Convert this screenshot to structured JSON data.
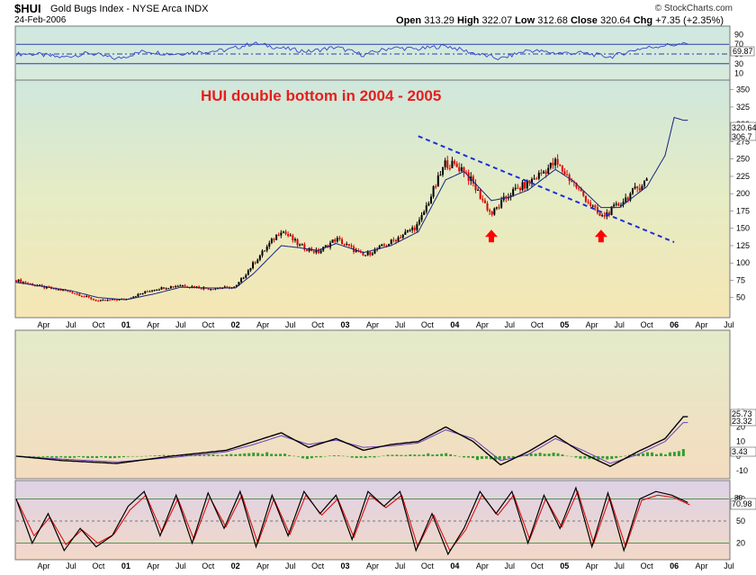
{
  "header": {
    "symbol": "$HUI",
    "name": "Gold Bugs Index - NYSE Arca INDX",
    "date": "24-Feb-2006",
    "open_label": "Open",
    "open": "313.29",
    "high_label": "High",
    "high": "322.07",
    "low_label": "Low",
    "low": "312.68",
    "close_label": "Close",
    "close": "320.64",
    "chg_label": "Chg",
    "chg": "+7.35 (+2.35%)",
    "brand": "© StockCharts.com"
  },
  "colors": {
    "rsi_line": "#3344cc",
    "price_up": "#000000",
    "price_down": "#dd0000",
    "ma": "#1a237e",
    "trendline": "#1a2fd6",
    "arrow": "#ff0000",
    "annotation": "#e61e1e",
    "macd": "#000000",
    "signal": "#6a3fbf",
    "histogram": "#2ea02e",
    "stoch_k": "#000000",
    "stoch_d": "#dd0000"
  },
  "chart_data": [
    {
      "type": "line",
      "panel": "rsi",
      "y_ticks": [
        "90",
        "70",
        "50",
        "30",
        "10"
      ],
      "value_label": "69.87",
      "ref_lines": [
        70,
        50,
        30
      ],
      "x": [
        "2000-03",
        "2000-06",
        "2000-09",
        "2000-12",
        "2001-03",
        "2001-06",
        "2001-09",
        "2001-12",
        "2002-03",
        "2002-06",
        "2002-09",
        "2002-12",
        "2003-03",
        "2003-06",
        "2003-09",
        "2003-12",
        "2004-03",
        "2004-06",
        "2004-09",
        "2004-12",
        "2005-03",
        "2005-06",
        "2005-09",
        "2005-12",
        "2006-02"
      ],
      "values": [
        50,
        43,
        52,
        40,
        56,
        50,
        54,
        58,
        72,
        62,
        55,
        64,
        48,
        63,
        60,
        67,
        52,
        40,
        58,
        52,
        52,
        44,
        60,
        68,
        70
      ]
    },
    {
      "type": "line",
      "panel": "price",
      "annotation": "HUI double bottom in 2004 - 2005",
      "y_ticks": [
        "350",
        "325",
        "300",
        "275",
        "250",
        "225",
        "200",
        "175",
        "150",
        "125",
        "100",
        "75",
        "50"
      ],
      "value_labels": [
        "320.64",
        "306.7"
      ],
      "ylim": [
        25,
        360
      ],
      "x_ticks": [
        "Apr",
        "Jul",
        "Oct",
        "01",
        "Apr",
        "Jul",
        "Oct",
        "02",
        "Apr",
        "Jul",
        "Oct",
        "03",
        "Apr",
        "Jul",
        "Oct",
        "04",
        "Apr",
        "Jul",
        "Oct",
        "05",
        "Apr",
        "Jul",
        "Oct",
        "06",
        "Apr",
        "Jul"
      ],
      "x": [
        "2000-01",
        "2000-04",
        "2000-07",
        "2000-10",
        "2001-01",
        "2001-04",
        "2001-07",
        "2001-10",
        "2002-01",
        "2002-03",
        "2002-06",
        "2002-08",
        "2002-10",
        "2002-12",
        "2003-03",
        "2003-06",
        "2003-09",
        "2003-12",
        "2004-02",
        "2004-05",
        "2004-07",
        "2004-09",
        "2004-12",
        "2005-02",
        "2005-05",
        "2005-07",
        "2005-10",
        "2005-12",
        "2006-01",
        "2006-02"
      ],
      "series": [
        {
          "values": [
            75,
            65,
            58,
            45,
            48,
            62,
            68,
            63,
            65,
            100,
            148,
            125,
            115,
            135,
            110,
            130,
            155,
            245,
            235,
            170,
            200,
            215,
            245,
            215,
            165,
            185,
            220,
            265,
            340,
            320
          ]
        },
        {
          "values": [
            72,
            66,
            60,
            50,
            47,
            55,
            65,
            64,
            64,
            85,
            125,
            122,
            118,
            128,
            115,
            125,
            145,
            220,
            232,
            190,
            195,
            205,
            235,
            218,
            180,
            180,
            210,
            255,
            310,
            306
          ]
        }
      ],
      "trendline": [
        [
          "2003-09",
          283
        ],
        [
          "2006-01",
          130
        ]
      ],
      "arrows": [
        "2004-05",
        "2005-05"
      ]
    },
    {
      "type": "line",
      "panel": "macd",
      "y_ticks": [
        "30",
        "20",
        "10",
        "0",
        "-10"
      ],
      "value_labels": [
        "25.73",
        "23.32",
        "3.43"
      ],
      "ylim": [
        -13,
        32
      ],
      "x": [
        "2000-01",
        "2000-06",
        "2000-12",
        "2001-06",
        "2001-12",
        "2002-03",
        "2002-06",
        "2002-09",
        "2002-12",
        "2003-03",
        "2003-06",
        "2003-09",
        "2003-12",
        "2004-03",
        "2004-06",
        "2004-09",
        "2004-12",
        "2005-03",
        "2005-06",
        "2005-09",
        "2005-12",
        "2006-02"
      ],
      "series": [
        {
          "values": [
            0,
            -3,
            -5,
            0,
            4,
            10,
            16,
            6,
            12,
            4,
            8,
            10,
            20,
            10,
            -6,
            3,
            14,
            2,
            -7,
            3,
            12,
            27
          ]
        },
        {
          "values": [
            0,
            -2,
            -4,
            -1,
            3,
            8,
            14,
            8,
            11,
            6,
            7,
            9,
            18,
            12,
            -3,
            1,
            12,
            4,
            -5,
            1,
            10,
            23
          ]
        }
      ],
      "histogram": [
        0,
        -1,
        -1,
        1,
        1,
        2,
        2,
        -2,
        1,
        -2,
        1,
        1,
        2,
        -2,
        -3,
        2,
        2,
        -2,
        -2,
        2,
        2,
        4
      ]
    },
    {
      "type": "line",
      "panel": "stochastic",
      "y_ticks": [
        "80",
        "50",
        "20"
      ],
      "value_labels": [
        "80",
        "70.98"
      ],
      "ylim": [
        0,
        100
      ],
      "ref_lines": [
        80,
        50,
        20
      ],
      "x_ticks": [
        "Apr",
        "Jul",
        "Oct",
        "01",
        "Apr",
        "Jul",
        "Oct",
        "02",
        "Apr",
        "Jul",
        "Oct",
        "03",
        "Apr",
        "Jul",
        "Oct",
        "04",
        "Apr",
        "Jul",
        "Oct",
        "05",
        "Apr",
        "Jul",
        "Oct",
        "06",
        "Apr",
        "Jul"
      ],
      "series": [
        {
          "values": [
            80,
            20,
            60,
            10,
            40,
            15,
            30,
            70,
            90,
            30,
            85,
            20,
            88,
            40,
            90,
            15,
            85,
            30,
            90,
            60,
            85,
            25,
            90,
            70,
            90,
            10,
            60,
            5,
            40,
            90,
            60,
            90,
            20,
            85,
            40,
            95,
            15,
            88,
            10,
            80,
            90,
            85,
            75
          ]
        },
        {
          "values": [
            75,
            30,
            55,
            18,
            38,
            20,
            32,
            65,
            85,
            35,
            80,
            25,
            82,
            42,
            85,
            20,
            80,
            32,
            85,
            58,
            80,
            28,
            85,
            68,
            85,
            15,
            58,
            10,
            38,
            85,
            58,
            85,
            25,
            80,
            42,
            90,
            20,
            82,
            15,
            78,
            85,
            82,
            72
          ]
        }
      ]
    }
  ]
}
